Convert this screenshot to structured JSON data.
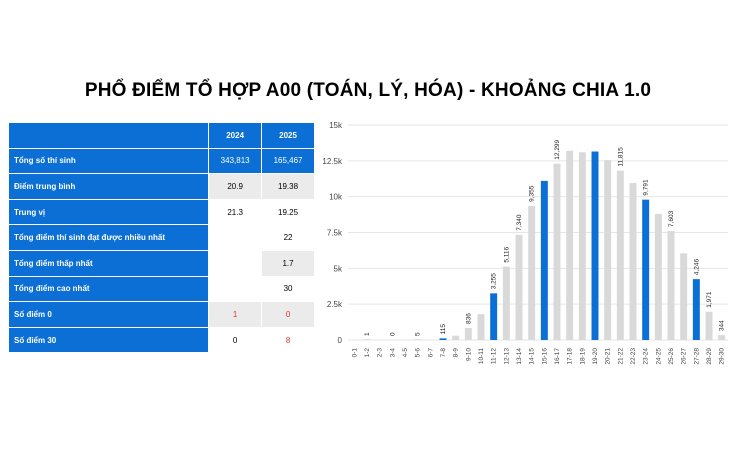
{
  "title": "PHỔ ĐIỂM TỔ HỢP A00 (TOÁN, LÝ, HÓA) - KHOẢNG CHIA 1.0",
  "colors": {
    "accent": "#0b6fd6",
    "gray_bar": "#d9d9d9",
    "red_text": "#e5312b"
  },
  "table": {
    "headers": [
      "2024",
      "2025"
    ],
    "rows": [
      {
        "label": "Tổng số thí sinh",
        "v2024": "343,813",
        "v2025": "165,467"
      },
      {
        "label": "Điểm trung bình",
        "v2024": "20.9",
        "v2025": "19.38"
      },
      {
        "label": "Trung vị",
        "v2024": "21.3",
        "v2025": "19.25"
      },
      {
        "label": "Tổng điểm thí sinh đạt được nhiều nhất",
        "v2024": "",
        "v2025": "22"
      },
      {
        "label": "Tổng điểm thấp nhất",
        "v2024": "",
        "v2025": "1.7"
      },
      {
        "label": "Tổng điểm cao nhất",
        "v2024": "",
        "v2025": "30"
      },
      {
        "label": "Số điểm 0",
        "v2024": "1",
        "v2025": "0"
      },
      {
        "label": "Số điểm 30",
        "v2024": "0",
        "v2025": "8"
      }
    ]
  },
  "chart_data": {
    "type": "bar",
    "categories": [
      "0-1",
      "1-2",
      "2-3",
      "3-4",
      "4-5",
      "5-6",
      "6-7",
      "7-8",
      "8-9",
      "9-10",
      "10-11",
      "11-12",
      "12-13",
      "13-14",
      "14-15",
      "15-16",
      "16-17",
      "17-18",
      "18-19",
      "19-20",
      "20-21",
      "21-22",
      "22-23",
      "23-24",
      "24-25",
      "25-26",
      "26-27",
      "27-28",
      "28-29",
      "29-30"
    ],
    "values": [
      0,
      1,
      0,
      0,
      0,
      5,
      0,
      115,
      300,
      836,
      1800,
      3255,
      5116,
      7340,
      9355,
      11100,
      12299,
      13200,
      13100,
      13150,
      12550,
      11815,
      10950,
      9791,
      8800,
      7603,
      6050,
      4246,
      1971,
      344
    ],
    "highlight": [
      7,
      11,
      15,
      19,
      23,
      27
    ],
    "data_labels": {
      "1": "1",
      "3": "0",
      "5": "5",
      "7": "115",
      "9": "836",
      "11": "3,255",
      "12": "5,116",
      "13": "7,340",
      "14": "9,355",
      "16": "12,299",
      "21": "11,815",
      "23": "9,791",
      "25": "7,603",
      "27": "4,246",
      "28": "1,971",
      "29": "344"
    },
    "yticks": [
      "0",
      "2.5k",
      "5k",
      "7.5k",
      "10k",
      "12.5k",
      "15k"
    ],
    "ylim": [
      0,
      15000
    ],
    "grid": true
  }
}
